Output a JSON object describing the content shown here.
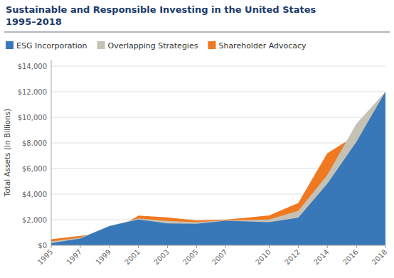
{
  "chart_data": {
    "type": "area",
    "title": "Sustainable and Responsible Investing in the United States",
    "subtitle": "1995–2018",
    "y_label": "Total Assets (in Billions)",
    "x": [
      1995,
      1997,
      1999,
      2001,
      2003,
      2005,
      2007,
      2010,
      2012,
      2014,
      2016,
      2018
    ],
    "series": [
      {
        "name": "ESG Incorporation",
        "color": "#3878b8",
        "values": [
          162,
          529,
          1497,
          2010,
          1702,
          1685,
          1917,
          1802,
          2158,
          4804,
          8090,
          11995
        ]
      },
      {
        "name": "Overlapping Strategies",
        "color": "#c5c2b5",
        "values": [
          300,
          600,
          1500,
          2100,
          1900,
          1800,
          1950,
          2020,
          2700,
          5500,
          9500,
          11995
        ]
      },
      {
        "name": "Shareholder Advocacy",
        "color": "#f07820",
        "values": [
          473,
          736,
          936,
          2320,
          2180,
          1940,
          2000,
          2340,
          3310,
          7200,
          8600,
          11995
        ]
      }
    ],
    "stacked": false,
    "xlim": [
      1995,
      2018
    ],
    "xticks": [
      1995,
      1997,
      1999,
      2001,
      2003,
      2005,
      2007,
      2010,
      2012,
      2014,
      2016,
      2018
    ],
    "ylim": [
      0,
      14500
    ],
    "yticks": [
      {
        "value": 0,
        "label": "$0"
      },
      {
        "value": 2000,
        "label": "$2,000"
      },
      {
        "value": 4000,
        "label": "$4,000"
      },
      {
        "value": 6000,
        "label": "$6,000"
      },
      {
        "value": 8000,
        "label": "$8,000"
      },
      {
        "value": 10000,
        "label": "$10,000"
      },
      {
        "value": 12000,
        "label": "$12,000"
      },
      {
        "value": 14000,
        "label": "$14,000"
      }
    ],
    "grid": true,
    "legend": "top-left"
  }
}
